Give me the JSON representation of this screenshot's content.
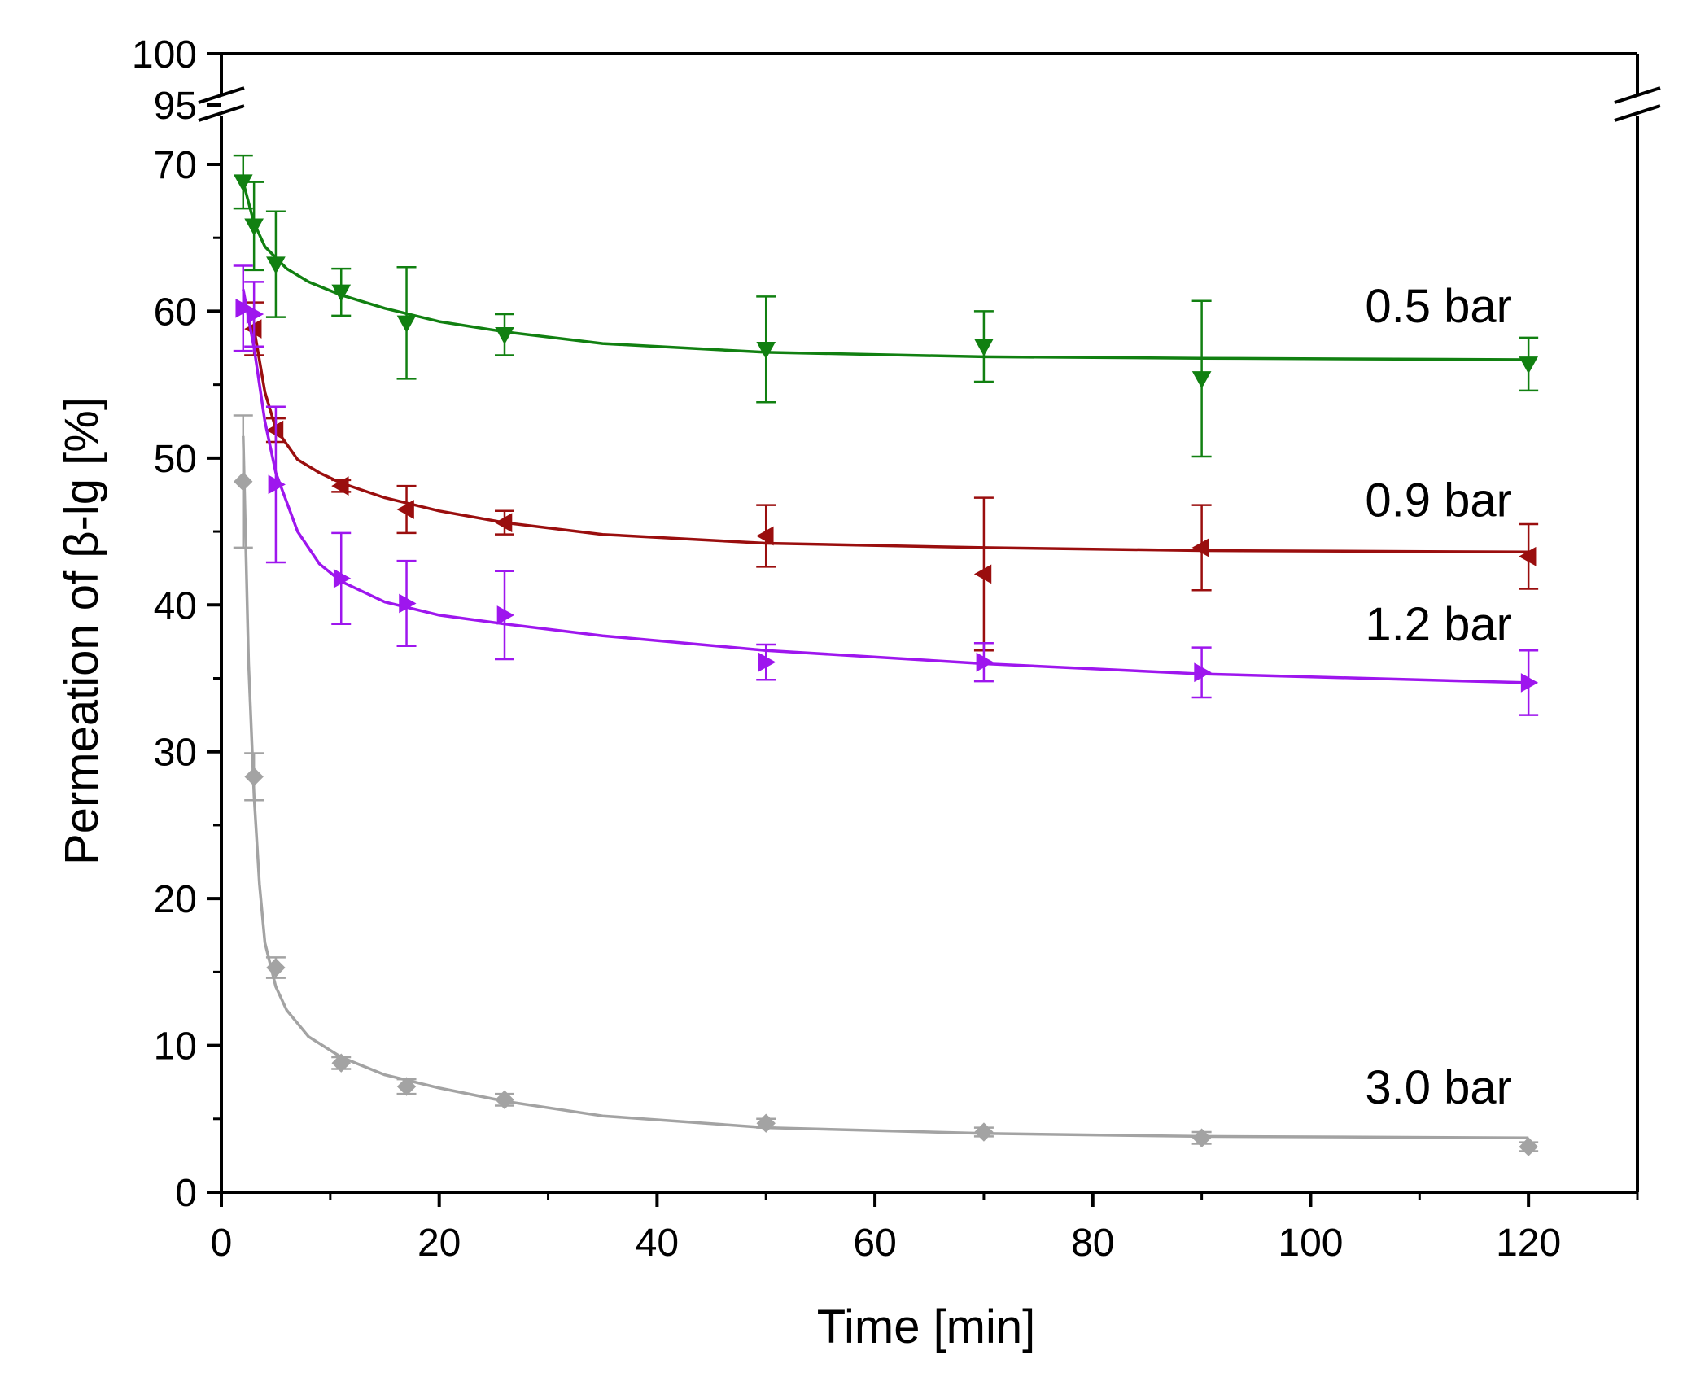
{
  "chart_data": {
    "type": "line",
    "xlabel": "Time [min]",
    "ylabel": "Permeation of β-lg [%]",
    "xlim": [
      0,
      130
    ],
    "ylim_lower": [
      0,
      70
    ],
    "ylim_upper": [
      95,
      100
    ],
    "x_ticks": [
      0,
      20,
      40,
      60,
      80,
      100,
      120
    ],
    "y_ticks_lower": [
      0,
      10,
      20,
      30,
      40,
      50,
      60,
      70
    ],
    "y_ticks_upper": [
      95,
      100
    ],
    "axis_break": "between 70 and 95 on the y axis",
    "grid": false,
    "series": [
      {
        "name": "0.5 bar",
        "color": "#118011",
        "marker": "triangle-down",
        "x": [
          2,
          3,
          5,
          11,
          17,
          26,
          50,
          70,
          90,
          120
        ],
        "y": [
          68.8,
          65.8,
          63.2,
          61.3,
          59.2,
          58.4,
          57.4,
          57.6,
          55.4,
          56.4
        ],
        "err": [
          1.8,
          3.0,
          3.6,
          1.6,
          3.8,
          1.4,
          3.6,
          2.4,
          5.3,
          1.8
        ],
        "fit": [
          [
            2,
            68.8
          ],
          [
            3,
            66.0
          ],
          [
            4,
            64.4
          ],
          [
            6,
            62.9
          ],
          [
            8,
            62.0
          ],
          [
            11,
            61.1
          ],
          [
            15,
            60.2
          ],
          [
            20,
            59.3
          ],
          [
            26,
            58.6
          ],
          [
            35,
            57.8
          ],
          [
            50,
            57.2
          ],
          [
            70,
            56.9
          ],
          [
            90,
            56.8
          ],
          [
            120,
            56.7
          ]
        ]
      },
      {
        "name": "0.9 bar",
        "color": "#9a0e0e",
        "marker": "triangle-left",
        "x": [
          3,
          5,
          11,
          17,
          26,
          50,
          70,
          90,
          120
        ],
        "y": [
          58.8,
          51.9,
          48.1,
          46.5,
          45.6,
          44.7,
          42.1,
          43.9,
          43.3
        ],
        "err": [
          1.8,
          0.8,
          0.4,
          1.6,
          0.8,
          2.1,
          5.2,
          2.9,
          2.2
        ],
        "fit": [
          [
            3,
            58.8
          ],
          [
            4,
            54.5
          ],
          [
            5,
            52.0
          ],
          [
            7,
            49.9
          ],
          [
            9,
            49.0
          ],
          [
            11,
            48.3
          ],
          [
            15,
            47.3
          ],
          [
            20,
            46.4
          ],
          [
            26,
            45.6
          ],
          [
            35,
            44.8
          ],
          [
            50,
            44.2
          ],
          [
            70,
            43.9
          ],
          [
            90,
            43.7
          ],
          [
            120,
            43.6
          ]
        ]
      },
      {
        "name": "1.2 bar",
        "color": "#9e16ee",
        "marker": "triangle-right",
        "x": [
          2,
          3,
          5,
          11,
          17,
          26,
          50,
          70,
          90,
          120
        ],
        "y": [
          60.2,
          59.8,
          48.2,
          41.8,
          40.1,
          39.3,
          36.1,
          36.1,
          35.4,
          34.7
        ],
        "err": [
          2.9,
          2.2,
          5.3,
          3.1,
          2.9,
          3.0,
          1.2,
          1.3,
          1.7,
          2.2
        ],
        "fit": [
          [
            2,
            61.5
          ],
          [
            3,
            57.5
          ],
          [
            4,
            52.5
          ],
          [
            5,
            49.0
          ],
          [
            7,
            45.0
          ],
          [
            9,
            42.8
          ],
          [
            11,
            41.6
          ],
          [
            15,
            40.2
          ],
          [
            20,
            39.3
          ],
          [
            26,
            38.7
          ],
          [
            35,
            37.9
          ],
          [
            50,
            36.9
          ],
          [
            70,
            36.0
          ],
          [
            90,
            35.3
          ],
          [
            120,
            34.7
          ]
        ]
      },
      {
        "name": "3.0 bar",
        "color": "#a3a3a3",
        "marker": "diamond",
        "x": [
          2,
          3,
          5,
          11,
          17,
          26,
          50,
          70,
          90,
          120
        ],
        "y": [
          48.4,
          28.3,
          15.3,
          8.8,
          7.2,
          6.3,
          4.7,
          4.1,
          3.7,
          3.1
        ],
        "err": [
          4.5,
          1.6,
          0.7,
          0.4,
          0.5,
          0.4,
          0.3,
          0.3,
          0.4,
          0.3
        ],
        "fit": [
          [
            2,
            51.5
          ],
          [
            2.5,
            36.0
          ],
          [
            3,
            27.0
          ],
          [
            3.5,
            21.0
          ],
          [
            4,
            17.0
          ],
          [
            5,
            14.0
          ],
          [
            6,
            12.4
          ],
          [
            8,
            10.6
          ],
          [
            11,
            9.2
          ],
          [
            15,
            8.0
          ],
          [
            20,
            7.1
          ],
          [
            26,
            6.2
          ],
          [
            35,
            5.2
          ],
          [
            50,
            4.4
          ],
          [
            70,
            4.0
          ],
          [
            90,
            3.8
          ],
          [
            120,
            3.7
          ]
        ]
      }
    ]
  }
}
